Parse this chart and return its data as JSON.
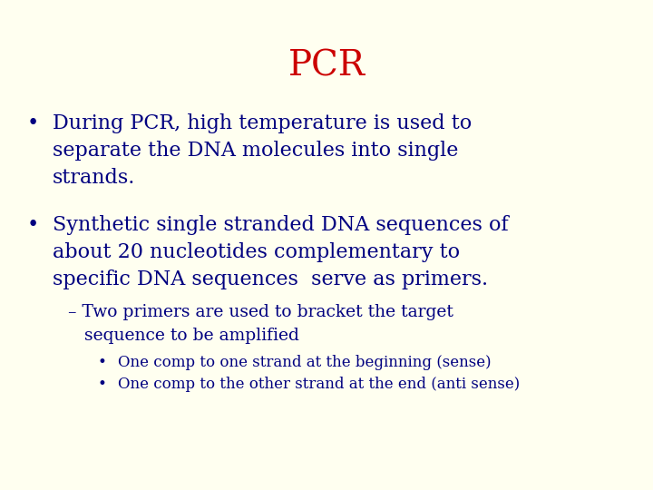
{
  "title": "PCR",
  "title_color": "#cc0000",
  "title_fontsize": 28,
  "background_color": "#fffff0",
  "text_color": "#000080",
  "bullet1_lines": [
    "During PCR, high temperature is used to",
    "separate the DNA molecules into single",
    "strands."
  ],
  "bullet2_lines": [
    "Synthetic single stranded DNA sequences of",
    "about 20 nucleotides complementary to",
    "specific DNA sequences  serve as primers."
  ],
  "dash1_lines": [
    "– Two primers are used to bracket the target",
    "   sequence to be amplified"
  ],
  "subbullet1": "One comp to one strand at the beginning (sense)",
  "subbullet2": "One comp to the other strand at the end (anti sense)",
  "main_fontsize": 16,
  "dash_fontsize": 13.5,
  "sub_fontsize": 12
}
